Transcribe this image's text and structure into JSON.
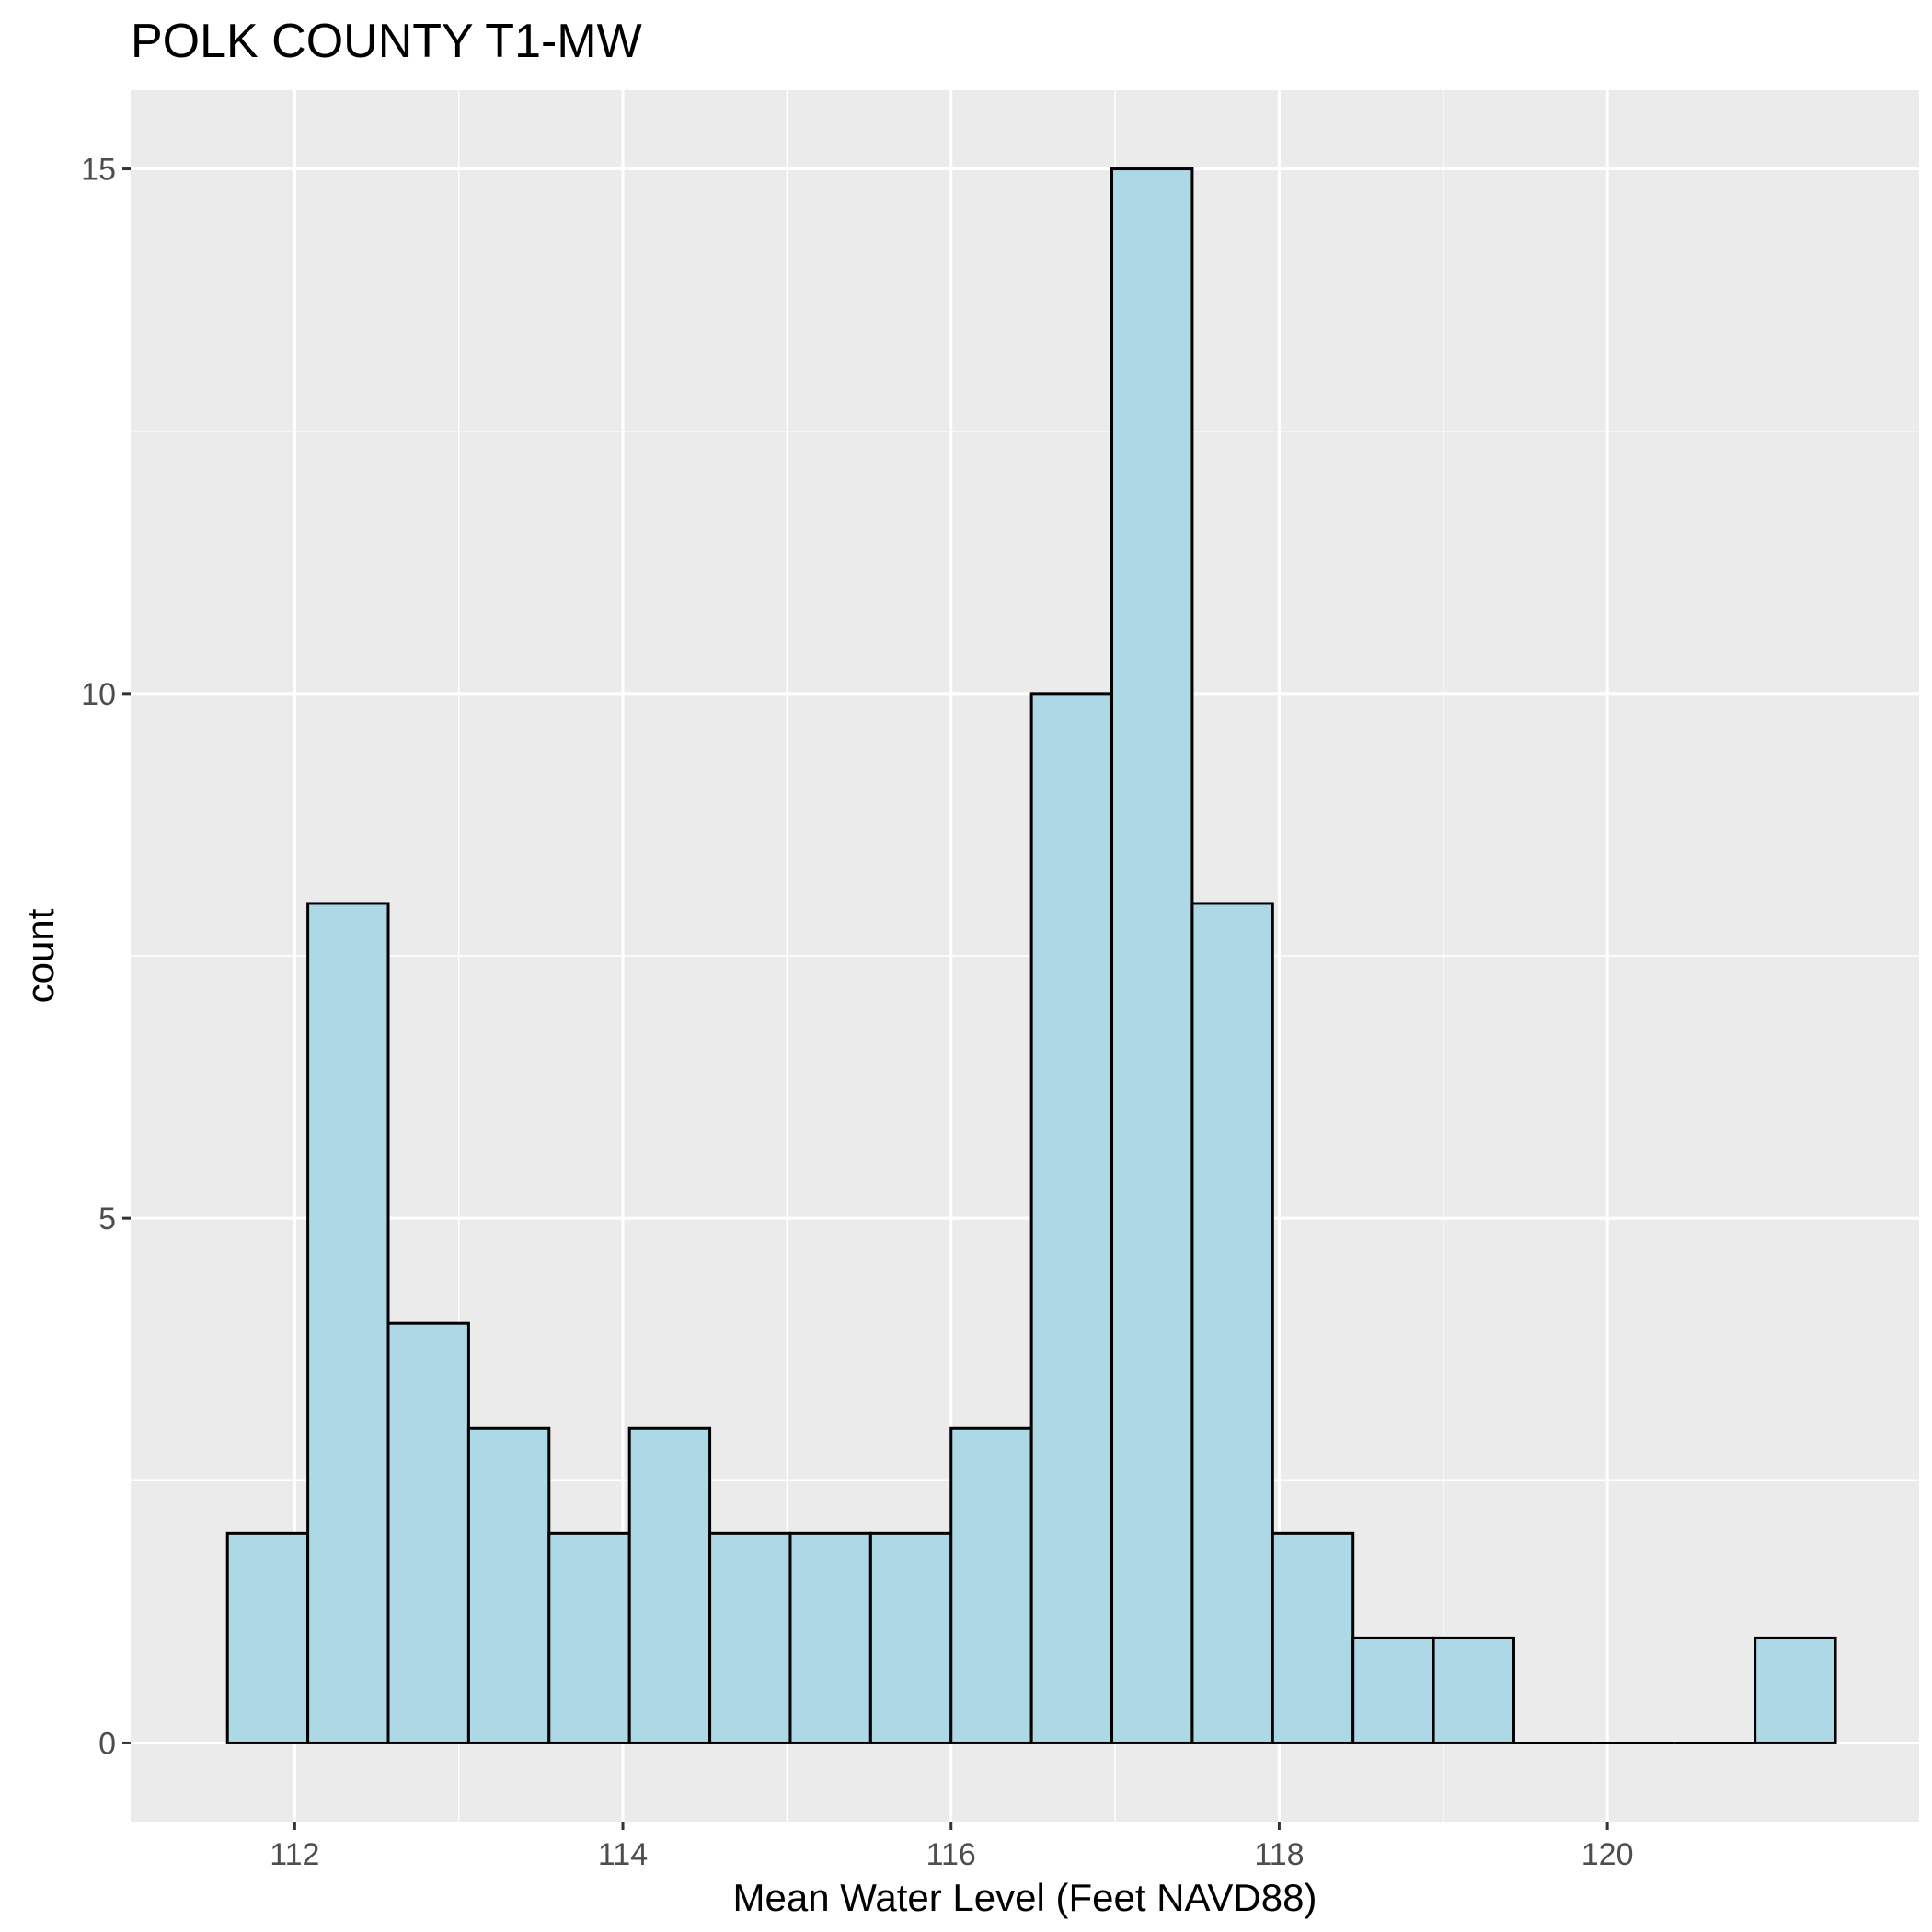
{
  "chart_data": {
    "type": "bar",
    "title": "POLK COUNTY T1-MW",
    "xlabel": "Mean Water Level (Feet NAVD88)",
    "ylabel": "count",
    "xlim": [
      111.0,
      121.9
    ],
    "ylim": [
      -0.75,
      15.75
    ],
    "x_ticks": [
      112,
      114,
      116,
      118,
      120
    ],
    "y_ticks": [
      0,
      5,
      10,
      15
    ],
    "bin_width": 0.49,
    "bins": [
      {
        "x0": 111.59,
        "x1": 112.08,
        "count": 2
      },
      {
        "x0": 112.08,
        "x1": 112.57,
        "count": 8
      },
      {
        "x0": 112.57,
        "x1": 113.06,
        "count": 4
      },
      {
        "x0": 113.06,
        "x1": 113.55,
        "count": 3
      },
      {
        "x0": 113.55,
        "x1": 114.04,
        "count": 2
      },
      {
        "x0": 114.04,
        "x1": 114.53,
        "count": 3
      },
      {
        "x0": 114.53,
        "x1": 115.02,
        "count": 2
      },
      {
        "x0": 115.02,
        "x1": 115.51,
        "count": 2
      },
      {
        "x0": 115.51,
        "x1": 116.0,
        "count": 2
      },
      {
        "x0": 116.0,
        "x1": 116.49,
        "count": 3
      },
      {
        "x0": 116.49,
        "x1": 116.98,
        "count": 10
      },
      {
        "x0": 116.98,
        "x1": 117.47,
        "count": 15
      },
      {
        "x0": 117.47,
        "x1": 117.96,
        "count": 8
      },
      {
        "x0": 117.96,
        "x1": 118.45,
        "count": 2
      },
      {
        "x0": 118.45,
        "x1": 118.94,
        "count": 1
      },
      {
        "x0": 118.94,
        "x1": 119.43,
        "count": 1
      },
      {
        "x0": 119.43,
        "x1": 119.92,
        "count": 0
      },
      {
        "x0": 119.92,
        "x1": 120.41,
        "count": 0
      },
      {
        "x0": 120.41,
        "x1": 120.9,
        "count": 0
      },
      {
        "x0": 120.9,
        "x1": 121.39,
        "count": 1
      }
    ],
    "grid": true,
    "colors": {
      "panel_background": "#ebebeb",
      "grid": "#ffffff",
      "bar_fill": "#add8e6",
      "bar_stroke": "#000000",
      "tick": "#333333"
    }
  }
}
